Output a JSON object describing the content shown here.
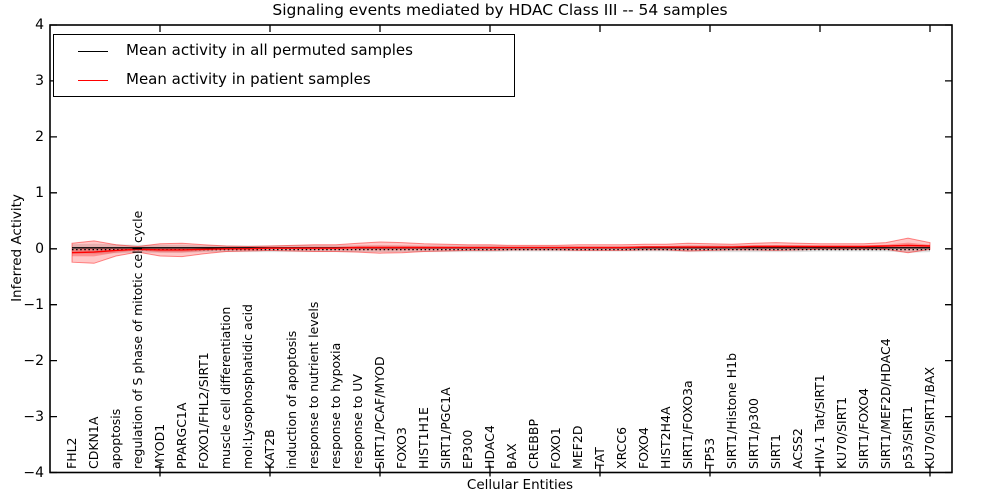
{
  "title": "Signaling events mediated by HDAC Class III -- 54 samples",
  "legend": {
    "items": [
      {
        "label": "Mean activity in all permuted samples",
        "color": "#000000"
      },
      {
        "label": "Mean activity in patient samples",
        "color": "#ff0000"
      }
    ]
  },
  "colors": {
    "patient_line": "#ff0000",
    "patient_band": "#ff0000",
    "permuted_line": "#000000",
    "permuted_band": "#a0a0a0",
    "frame": "#000000"
  },
  "chart_data": {
    "type": "line",
    "title": "Signaling events mediated by HDAC Class III -- 54 samples",
    "xlabel": "Cellular Entities",
    "ylabel": "Inferred Activity",
    "ylim": [
      -4,
      4
    ],
    "xlim": [
      0,
      41
    ],
    "yticks": [
      4,
      3,
      2,
      1,
      0,
      -1,
      -2,
      -3,
      -4
    ],
    "xtick_positions": [
      5,
      10,
      15,
      20,
      25,
      30,
      35,
      40
    ],
    "grid": false,
    "legend_position": "upper left",
    "x": [
      1,
      2,
      3,
      4,
      5,
      6,
      7,
      8,
      9,
      10,
      11,
      12,
      13,
      14,
      15,
      16,
      17,
      18,
      19,
      20,
      21,
      22,
      23,
      24,
      25,
      26,
      27,
      28,
      29,
      30,
      31,
      32,
      33,
      34,
      35,
      36,
      37,
      38,
      39,
      40
    ],
    "categories": [
      "FHL2",
      "CDKN1A",
      "apoptosis",
      "regulation of S phase of mitotic cell cycle",
      "MYOD1",
      "PPARGC1A",
      "FOXO1/FHL2/SIRT1",
      "muscle cell differentiation",
      "mol:Lysophosphatidic acid",
      "KAT2B",
      "induction of apoptosis",
      "response to nutrient levels",
      "response to hypoxia",
      "response to UV",
      "SIRT1/PCAF/MYOD",
      "FOXO3",
      "HIST1H1E",
      "SIRT1/PGC1A",
      "EP300",
      "HDAC4",
      "BAX",
      "CREBBP",
      "FOXO1",
      "MEF2D",
      "TAT",
      "XRCC6",
      "FOXO4",
      "HIST2H4A",
      "SIRT1/FOXO3a",
      "TP53",
      "SIRT1/Histone H1b",
      "SIRT1/p300",
      "SIRT1",
      "ACSS2",
      "HIV-1 Tat/SIRT1",
      "KU70/SIRT1",
      "SIRT1/FOXO4",
      "SIRT1/MEF2D/HDAC4",
      "p53/SIRT1",
      "KU70/SIRT1/BAX"
    ],
    "series": [
      {
        "name": "Mean activity in all permuted samples",
        "color": "#000000",
        "values": [
          0,
          0,
          0,
          0,
          0,
          0,
          0,
          0,
          0,
          0,
          0,
          0,
          0,
          0,
          0,
          0,
          0,
          0,
          0,
          0,
          0,
          0,
          0,
          0,
          0,
          0,
          0,
          0,
          0,
          0,
          0,
          0,
          0,
          0,
          0,
          0,
          0,
          0,
          0,
          0
        ],
        "band_halfwidth": [
          0.08,
          0.09,
          0.08,
          0.07,
          0.07,
          0.07,
          0.06,
          0.06,
          0.06,
          0.06,
          0.06,
          0.06,
          0.06,
          0.06,
          0.06,
          0.06,
          0.06,
          0.06,
          0.06,
          0.06,
          0.05,
          0.05,
          0.05,
          0.05,
          0.05,
          0.05,
          0.05,
          0.05,
          0.06,
          0.06,
          0.06,
          0.06,
          0.06,
          0.06,
          0.05,
          0.05,
          0.05,
          0.05,
          0.07,
          0.06
        ]
      },
      {
        "name": "Mean activity in patient samples",
        "color": "#ff0000",
        "values": [
          -0.07,
          -0.06,
          -0.03,
          -0.01,
          -0.02,
          -0.02,
          -0.01,
          0,
          0,
          0.01,
          0.01,
          0.01,
          0.01,
          0.02,
          0.02,
          0.02,
          0.02,
          0.02,
          0.02,
          0.02,
          0.02,
          0.02,
          0.02,
          0.02,
          0.02,
          0.02,
          0.03,
          0.03,
          0.03,
          0.03,
          0.03,
          0.04,
          0.04,
          0.04,
          0.04,
          0.04,
          0.04,
          0.05,
          0.06,
          0.05
        ],
        "band_halfwidth": [
          0.17,
          0.2,
          0.1,
          0.05,
          0.11,
          0.12,
          0.08,
          0.05,
          0.04,
          0.04,
          0.05,
          0.06,
          0.06,
          0.08,
          0.1,
          0.09,
          0.07,
          0.06,
          0.05,
          0.05,
          0.04,
          0.04,
          0.04,
          0.05,
          0.05,
          0.05,
          0.05,
          0.05,
          0.07,
          0.06,
          0.05,
          0.06,
          0.07,
          0.06,
          0.05,
          0.05,
          0.05,
          0.06,
          0.13,
          0.06
        ]
      }
    ]
  }
}
